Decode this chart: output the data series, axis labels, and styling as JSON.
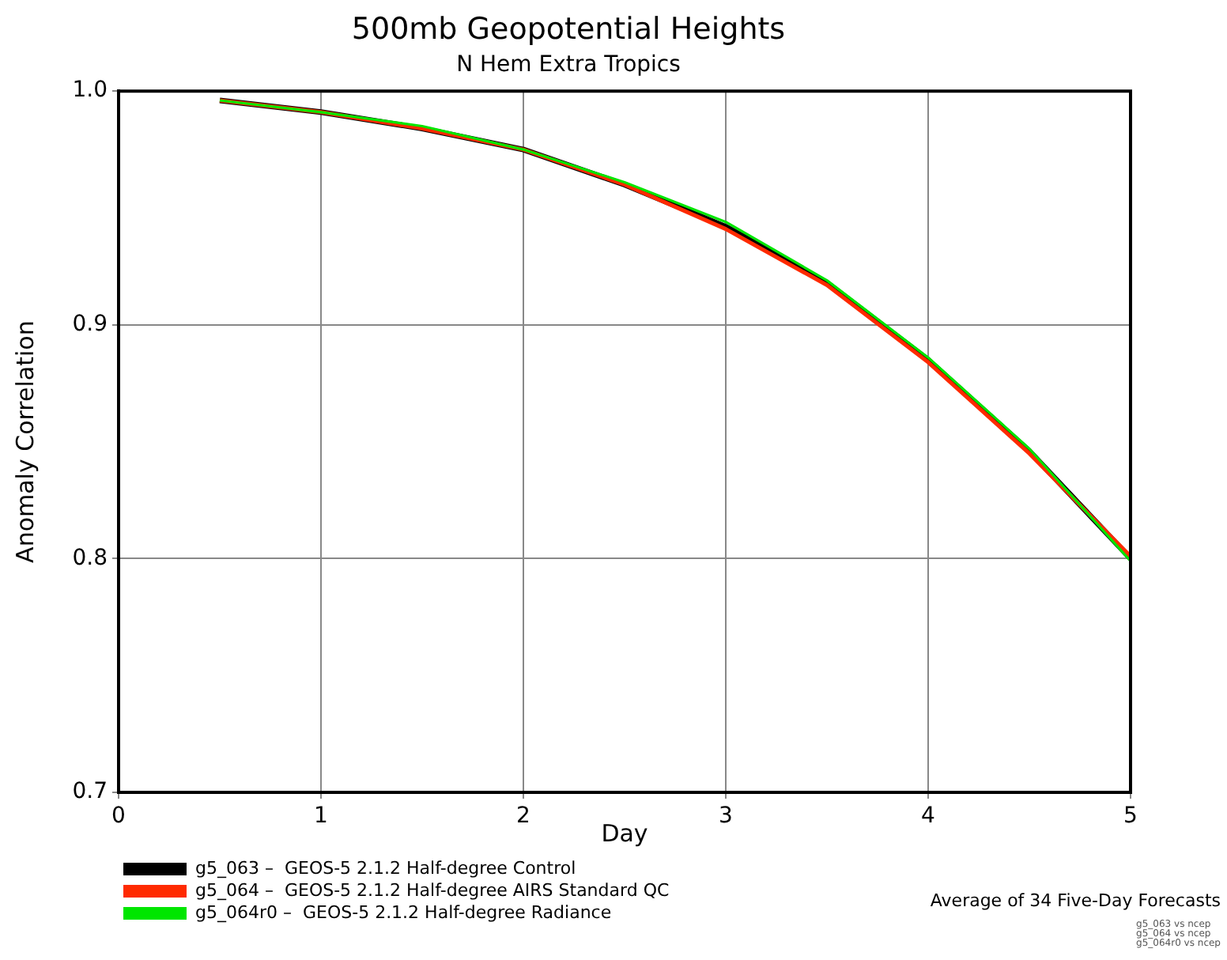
{
  "chart_data": {
    "type": "line",
    "title": "500mb Geopotential Heights",
    "subtitle": "N Hem Extra Tropics",
    "xlabel": "Day",
    "ylabel": "Anomaly Correlation",
    "x": [
      0.5,
      1,
      1.5,
      2,
      2.5,
      3,
      3.5,
      4,
      4.5,
      5
    ],
    "series": [
      {
        "name": "g5_063 –  GEOS-5 2.1.2 Half-degree Control",
        "color": "#000000",
        "values": [
          0.996,
          0.991,
          0.984,
          0.975,
          0.96,
          0.942,
          0.918,
          0.885,
          0.846,
          0.8
        ]
      },
      {
        "name": "g5_064 –  GEOS-5 2.1.2 Half-degree AIRS Standard QC",
        "color": "#ff2a00",
        "values": [
          0.996,
          0.991,
          0.984,
          0.975,
          0.96,
          0.941,
          0.917,
          0.884,
          0.845,
          0.801
        ]
      },
      {
        "name": "g5_064r0 –  GEOS-5 2.1.2 Half-degree Radiance",
        "color": "#00e600",
        "values": [
          0.996,
          0.991,
          0.985,
          0.975,
          0.961,
          0.944,
          0.919,
          0.886,
          0.847,
          0.799
        ]
      }
    ],
    "xlim": [
      0,
      5
    ],
    "xticks": [
      0,
      1,
      2,
      3,
      4,
      5
    ],
    "ylim": [
      0.7,
      1.0
    ],
    "yticks": [
      {
        "value": 0.7,
        "label": "0.7"
      },
      {
        "value": 0.8,
        "label": "0.8"
      },
      {
        "value": 0.9,
        "label": "0.9"
      },
      {
        "value": 1.0,
        "label": "1.0"
      }
    ],
    "grid": true,
    "legend": "bottom left",
    "marker": "none",
    "line_style": "solid",
    "annotations": [
      "Average of 34 Five-Day Forecasts",
      "g5_063 vs ncep",
      "g5_064 vs ncep",
      "g5_064r0 vs ncep"
    ]
  }
}
